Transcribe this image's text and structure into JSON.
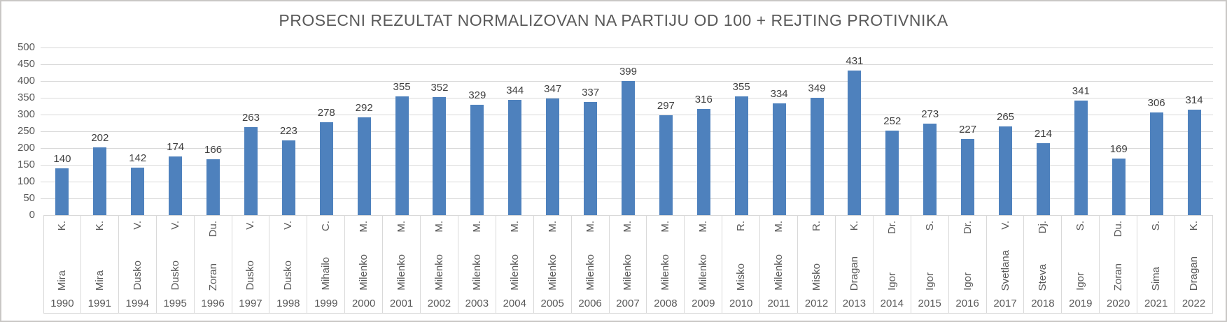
{
  "chart_data": {
    "type": "bar",
    "title": "PROSECNI REZULTAT NORMALIZOVAN NA PARTIJU OD 100 + REJTING PROTIVNIKA",
    "categories": [
      "1990",
      "1991",
      "1994",
      "1995",
      "1996",
      "1997",
      "1998",
      "1999",
      "2000",
      "2001",
      "2002",
      "2003",
      "2004",
      "2005",
      "2006",
      "2007",
      "2008",
      "2009",
      "2010",
      "2011",
      "2012",
      "2013",
      "2014",
      "2015",
      "2016",
      "2017",
      "2018",
      "2019",
      "2020",
      "2021",
      "2022"
    ],
    "opponents": [
      "Mira K.",
      "Mira K.",
      "Dusko V.",
      "Dusko V.",
      "Zoran Du.",
      "Dusko V.",
      "Dusko V.",
      "Mihailo C.",
      "Milenko M.",
      "Milenko M.",
      "Milenko M.",
      "Milenko M.",
      "Milenko M.",
      "Milenko M.",
      "Milenko M.",
      "Milenko M.",
      "Milenko M.",
      "Milenko M.",
      "Misko R.",
      "Milenko M.",
      "Misko R.",
      "Dragan K.",
      "Igor Dr.",
      "Igor S.",
      "Igor Dr.",
      "Svetlana V.",
      "Steva Dj.",
      "Igor S.",
      "Zoran Du.",
      "Sima S.",
      "Dragan K."
    ],
    "values": [
      140,
      202,
      142,
      174,
      166,
      263,
      223,
      278,
      292,
      355,
      352,
      329,
      344,
      347,
      337,
      399,
      297,
      316,
      355,
      334,
      349,
      431,
      252,
      273,
      227,
      265,
      214,
      341,
      169,
      306,
      314
    ],
    "xlabel": "",
    "ylabel": "",
    "ylim": [
      0,
      500
    ],
    "ytick_step": 50,
    "grid": true,
    "legend": "none",
    "colors": {
      "bar": "#4E81BD",
      "gridline": "#D9D9D9",
      "cell_border": "#D9D9D9",
      "title_text": "#595959",
      "axis_text": "#595959",
      "data_label_text": "#404040"
    }
  }
}
